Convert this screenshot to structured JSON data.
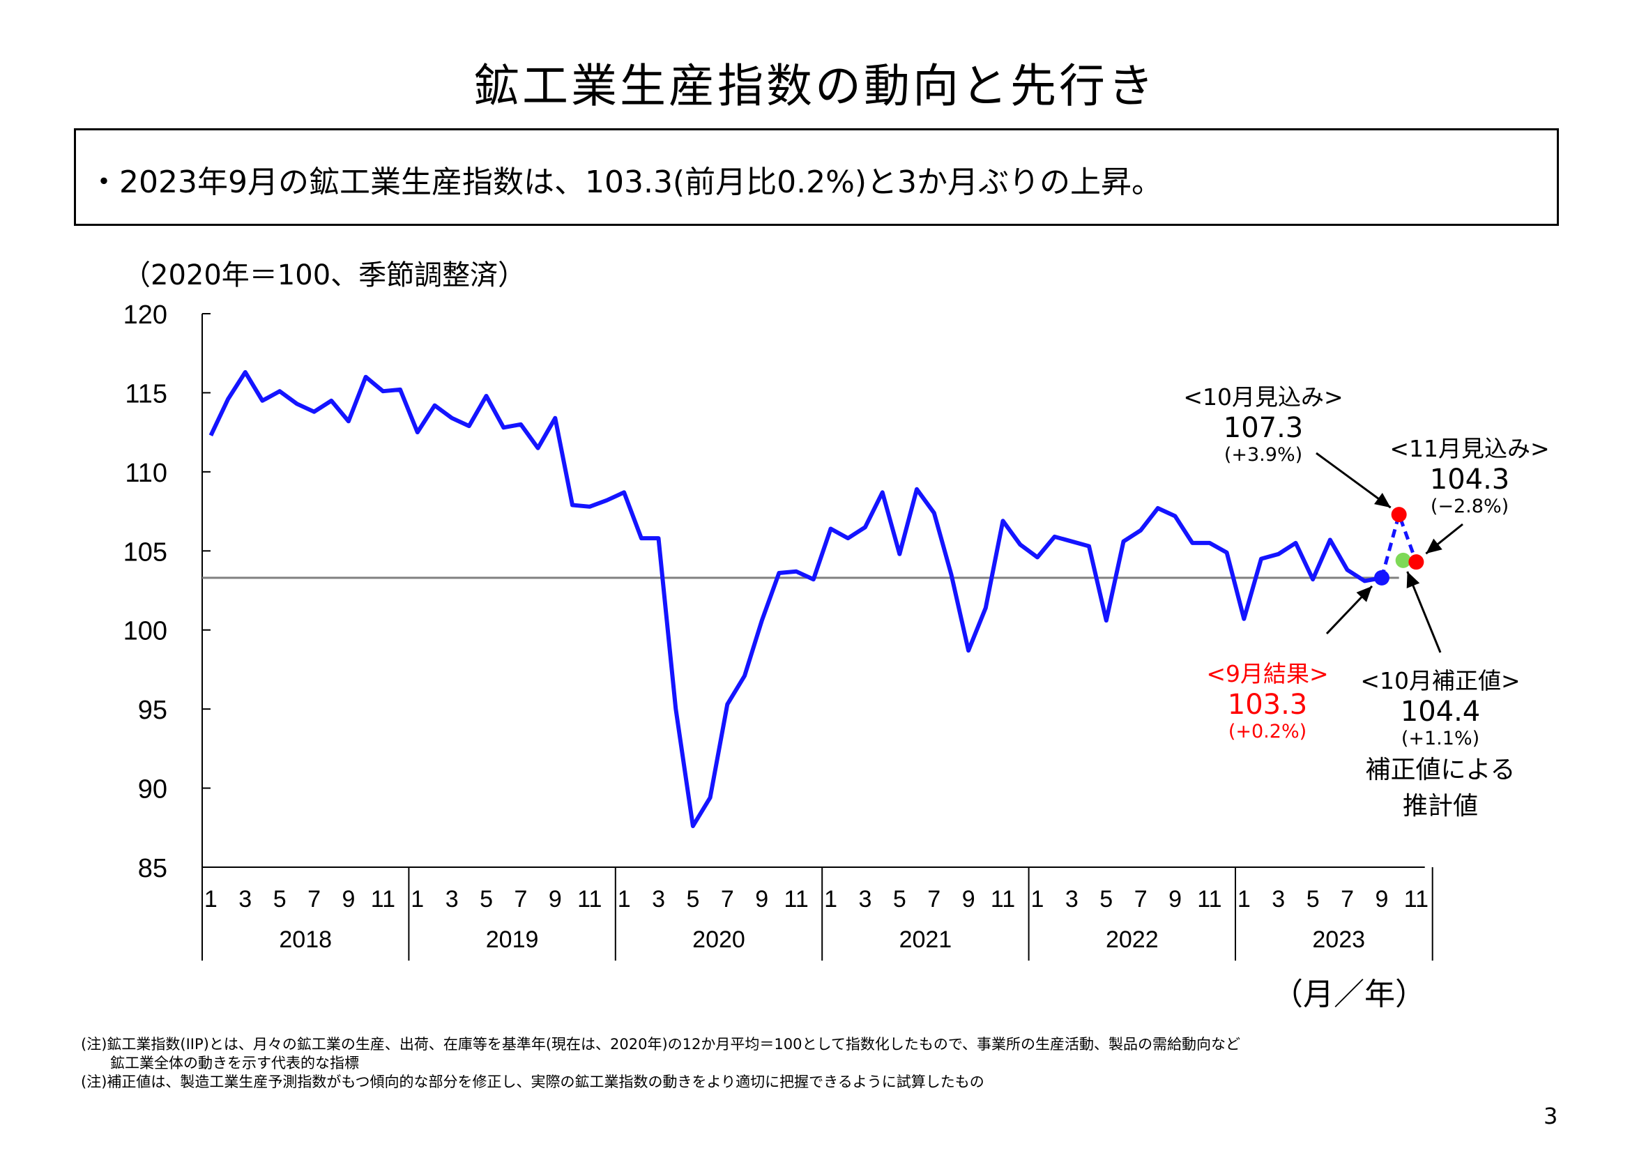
{
  "title": "鉱工業生産指数の動向と先行き",
  "summary": "・2023年9月の鉱工業生産指数は、103.3(前月比0.2%)と3か月ぶりの上昇。",
  "unit_note": "（2020年＝100、季節調整済）",
  "axis_unit": "（月／年）",
  "footnotes": [
    "(注)鉱工業指数(IIP)とは、月々の鉱工業の生産、出荷、在庫等を基準年(現在は、2020年)の12か月平均＝100として指数化したもので、事業所の生産活動、製品の需給動向など",
    "鉱工業全体の動きを示す代表的な指標",
    "(注)補正値は、製造工業生産予測指数がもつ傾向的な部分を修正し、実際の鉱工業指数の動きをより適切に把握できるように試算したもの"
  ],
  "page_number": "3",
  "annotations": {
    "oct_forecast": {
      "label": "<10月見込み>",
      "value": "107.3",
      "change": "(+3.9%)"
    },
    "nov_forecast": {
      "label": "<11月見込み>",
      "value": "104.3",
      "change": "(−2.8%)"
    },
    "sep_result": {
      "label": "<9月結果>",
      "value": "103.3",
      "change": "(+0.2%)"
    },
    "oct_corrected": {
      "label": "<10月補正値>",
      "value": "104.4",
      "change": "(+1.1%)",
      "note_line1": "補正値による",
      "note_line2": "推計値"
    }
  },
  "colors": {
    "actual_line": "#1414ff",
    "forecast_line": "#1414ff",
    "reference_line": "#808080",
    "sep_marker": "#1414ff",
    "oct_forecast_marker": "#ff0000",
    "nov_forecast_marker": "#ff0000",
    "oct_corrected_marker": "#7ed957",
    "highlight_text": "#ff0000"
  },
  "chart_data": {
    "type": "line",
    "title": "",
    "xlabel": "（月／年）",
    "ylabel": "（2020年＝100、季節調整済）",
    "ylim": [
      85,
      120
    ],
    "yticks": [
      85,
      90,
      95,
      100,
      105,
      110,
      115,
      120
    ],
    "month_tick_labels": [
      "1",
      "3",
      "5",
      "7",
      "9",
      "11"
    ],
    "years": [
      "2018",
      "2019",
      "2020",
      "2021",
      "2022",
      "2023"
    ],
    "grid": false,
    "reference_line_value": 103.3,
    "series": [
      {
        "values": [
          112.3,
          114.6,
          116.3,
          114.5,
          115.1,
          114.3,
          113.8,
          114.5,
          113.2,
          116.0,
          115.1,
          115.2,
          112.5,
          114.2,
          113.4,
          112.9,
          114.8,
          112.8,
          113.0,
          111.5,
          113.4,
          107.9,
          107.8,
          108.2,
          108.7,
          105.8,
          105.8,
          95.0,
          87.6,
          89.4,
          95.3,
          97.1,
          100.6,
          103.6,
          103.7,
          103.2,
          106.4,
          105.8,
          106.5,
          108.7,
          104.8,
          108.9,
          107.4,
          103.5,
          98.7,
          101.4,
          106.9,
          105.4,
          104.6,
          105.9,
          105.6,
          105.3,
          100.6,
          105.6,
          106.3,
          107.7,
          107.2,
          105.5,
          105.5,
          104.9,
          100.7,
          104.5,
          104.8,
          105.5,
          103.2,
          105.7,
          103.8,
          103.1,
          103.3
        ]
      }
    ],
    "forecast_points": [
      {
        "x": "2023-10",
        "y": 107.3
      },
      {
        "x": "2023-11",
        "y": 104.3
      }
    ],
    "corrected_point": {
      "x": "2023-10",
      "y": 104.4
    },
    "latest_point": {
      "x": "2023-09",
      "y": 103.3
    }
  }
}
